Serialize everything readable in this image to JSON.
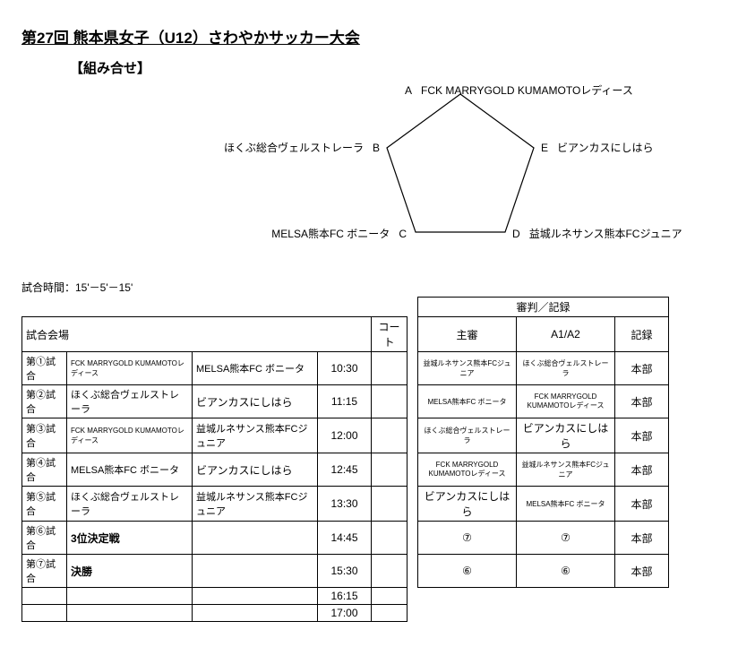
{
  "title": "第27回 熊本県女子（U12）さわやかサッカー大会",
  "subtitle": "【組み合せ】",
  "pentagon": {
    "labels": {
      "a": {
        "letter": "A",
        "team": "FCK MARRYGOLD KUMAMOTOレディース"
      },
      "b": {
        "letter": "B",
        "team": "ほくぶ総合ヴェルストレーラ"
      },
      "c": {
        "letter": "C",
        "team": "MELSA熊本FC ボニータ"
      },
      "d": {
        "letter": "D",
        "team": "益城ルネサンス熊本FCジュニア"
      },
      "e": {
        "letter": "E",
        "team": "ビアンカスにしはら"
      }
    },
    "stroke": "#000000",
    "fill": "none"
  },
  "time_note": "試合時間：15'－5'－15'",
  "headers": {
    "venue": "試合会場",
    "court": "コート",
    "judge_header": "審判／記録",
    "chief": "主審",
    "a1a2": "A1/A2",
    "record": "記録"
  },
  "matches": [
    {
      "no": "第①試合",
      "team1": "FCK MARRYGOLD KUMAMOTOレディース",
      "team1_small": true,
      "team2": "MELSA熊本FC ボニータ",
      "team2_small": false,
      "time": "10:30",
      "chief": "益城ルネサンス熊本FCジュニア",
      "chief_small": true,
      "a1a2": "ほくぶ総合ヴェルストレーラ",
      "a1a2_small": true,
      "record": "本部"
    },
    {
      "no": "第②試合",
      "team1": "ほくぶ総合ヴェルストレーラ",
      "team1_small": false,
      "team2": "ビアンカスにしはら",
      "team2_small": false,
      "time": "11:15",
      "chief": "MELSA熊本FC ボニータ",
      "chief_small": true,
      "a1a2": "FCK MARRYGOLD KUMAMOTOレディース",
      "a1a2_small": true,
      "record": "本部"
    },
    {
      "no": "第③試合",
      "team1": "FCK MARRYGOLD KUMAMOTOレディース",
      "team1_small": true,
      "team2": "益城ルネサンス熊本FCジュニア",
      "team2_small": false,
      "time": "12:00",
      "chief": "ほくぶ総合ヴェルストレーラ",
      "chief_small": true,
      "a1a2": "ビアンカスにしはら",
      "a1a2_small": false,
      "record": "本部"
    },
    {
      "no": "第④試合",
      "team1": "MELSA熊本FC ボニータ",
      "team1_small": false,
      "team2": "ビアンカスにしはら",
      "team2_small": false,
      "time": "12:45",
      "chief": "FCK MARRYGOLD KUMAMOTOレディース",
      "chief_small": true,
      "a1a2": "益城ルネサンス熊本FCジュニア",
      "a1a2_small": true,
      "record": "本部"
    },
    {
      "no": "第⑤試合",
      "team1": "ほくぶ総合ヴェルストレーラ",
      "team1_small": false,
      "team2": "益城ルネサンス熊本FCジュニア",
      "team2_small": false,
      "time": "13:30",
      "chief": "ビアンカスにしはら",
      "chief_small": false,
      "a1a2": "MELSA熊本FC ボニータ",
      "a1a2_small": true,
      "record": "本部"
    },
    {
      "no": "第⑥試合",
      "team1": "3位決定戦",
      "team1_small": false,
      "team2": "",
      "team2_small": false,
      "time": "14:45",
      "chief": "⑦",
      "chief_small": false,
      "a1a2": "⑦",
      "a1a2_small": false,
      "record": "本部"
    },
    {
      "no": "第⑦試合",
      "team1": "決勝",
      "team1_small": false,
      "team2": "",
      "team2_small": false,
      "time": "15:30",
      "chief": "⑥",
      "chief_small": false,
      "a1a2": "⑥",
      "a1a2_small": false,
      "record": "本部"
    }
  ],
  "extra_times": [
    "16:15",
    "17:00"
  ]
}
